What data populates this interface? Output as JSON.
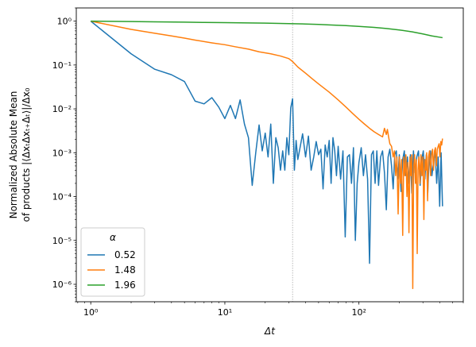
{
  "chart_data": {
    "type": "line",
    "title": "",
    "xlabel": "Δt",
    "ylabel_line1": "Normalized Absolute Mean",
    "ylabel_line2": "of products |⟨ΔxₜΔxₜ₊Δₜ⟩|/Δx₀",
    "xscale": "log",
    "yscale": "log",
    "xlim": [
      0.78,
      600
    ],
    "ylim": [
      4e-07,
      2.0
    ],
    "x_ticks": [
      {
        "value": 1,
        "label": "10⁰"
      },
      {
        "value": 10,
        "label": "10¹"
      },
      {
        "value": 100,
        "label": "10²"
      }
    ],
    "y_ticks": [
      {
        "value": 1e-06,
        "label": "10⁻⁶"
      },
      {
        "value": 1e-05,
        "label": "10⁻⁵"
      },
      {
        "value": 0.0001,
        "label": "10⁻⁴"
      },
      {
        "value": 0.001,
        "label": "10⁻³"
      },
      {
        "value": 0.01,
        "label": "10⁻²"
      },
      {
        "value": 0.1,
        "label": "10⁻¹"
      },
      {
        "value": 1,
        "label": "10⁰"
      }
    ],
    "vline_x": 32,
    "legend": {
      "title": "α",
      "position": "lower-left"
    },
    "series": [
      {
        "name": "0.52",
        "color": "#1f77b4",
        "points": [
          [
            1,
            1.0
          ],
          [
            2,
            0.18
          ],
          [
            3,
            0.08
          ],
          [
            4,
            0.06
          ],
          [
            5,
            0.042
          ],
          [
            6,
            0.015
          ],
          [
            7,
            0.013
          ],
          [
            8,
            0.018
          ],
          [
            9,
            0.011
          ],
          [
            10,
            0.006
          ],
          [
            11,
            0.012
          ],
          [
            12,
            0.006
          ],
          [
            13,
            0.016
          ],
          [
            14,
            0.0045
          ],
          [
            15,
            0.0022
          ],
          [
            16,
            0.00018
          ],
          [
            17,
            0.001
          ],
          [
            18,
            0.0043
          ],
          [
            19,
            0.0011
          ],
          [
            20,
            0.0028
          ],
          [
            21,
            0.0008
          ],
          [
            22,
            0.0045
          ],
          [
            23,
            0.0002
          ],
          [
            24,
            0.0022
          ],
          [
            25,
            0.0013
          ],
          [
            26,
            0.0004
          ],
          [
            27,
            0.0011
          ],
          [
            28,
            0.0004
          ],
          [
            29,
            0.0022
          ],
          [
            30,
            0.0009
          ],
          [
            31,
            0.0105
          ],
          [
            32,
            0.017
          ],
          [
            33,
            0.0004
          ],
          [
            34,
            0.0019
          ],
          [
            35,
            0.0007
          ],
          [
            36,
            0.0011
          ],
          [
            38,
            0.0027
          ],
          [
            40,
            0.0008
          ],
          [
            42,
            0.0024
          ],
          [
            44,
            0.0004
          ],
          [
            46,
            0.0008
          ],
          [
            48,
            0.0018
          ],
          [
            50,
            0.0009
          ],
          [
            52,
            0.0012
          ],
          [
            54,
            0.00015
          ],
          [
            56,
            0.0015
          ],
          [
            58,
            0.0008
          ],
          [
            60,
            0.0019
          ],
          [
            62,
            0.0002
          ],
          [
            64,
            0.0022
          ],
          [
            66,
            0.0011
          ],
          [
            68,
            0.0003
          ],
          [
            70,
            0.0014
          ],
          [
            73,
            0.00025
          ],
          [
            76,
            0.0011
          ],
          [
            79,
            1.2e-05
          ],
          [
            82,
            0.0008
          ],
          [
            85,
            0.0009
          ],
          [
            88,
            0.0002
          ],
          [
            91,
            0.0013
          ],
          [
            94,
            1e-05
          ],
          [
            97,
            0.0002
          ],
          [
            100,
            0.0006
          ],
          [
            104,
            0.0013
          ],
          [
            108,
            0.0003
          ],
          [
            112,
            0.0009
          ],
          [
            116,
            0.00025
          ],
          [
            120,
            3e-06
          ],
          [
            124,
            0.0009
          ],
          [
            128,
            0.0011
          ],
          [
            132,
            0.0002
          ],
          [
            136,
            0.0011
          ],
          [
            140,
            0.00018
          ],
          [
            145,
            0.0008
          ],
          [
            150,
            0.0011
          ],
          [
            155,
            0.00035
          ],
          [
            160,
            5e-05
          ],
          [
            165,
            0.0008
          ],
          [
            170,
            0.0012
          ],
          [
            175,
            0.0005
          ],
          [
            180,
            0.00015
          ],
          [
            185,
            0.0009
          ],
          [
            190,
            0.0011
          ],
          [
            195,
            0.00025
          ],
          [
            200,
            0.0009
          ],
          [
            206,
            0.00013
          ],
          [
            212,
            0.0007
          ],
          [
            218,
            0.0011
          ],
          [
            224,
            0.0003
          ],
          [
            230,
            0.0008
          ],
          [
            236,
            0.0002
          ],
          [
            242,
            0.0009
          ],
          [
            248,
            0.00012
          ],
          [
            255,
            0.0011
          ],
          [
            262,
            0.00035
          ],
          [
            270,
            0.0008
          ],
          [
            278,
            0.0011
          ],
          [
            286,
            0.00018
          ],
          [
            294,
            0.0007
          ],
          [
            302,
            0.0011
          ],
          [
            310,
            0.00025
          ],
          [
            318,
            0.0009
          ],
          [
            326,
            0.00012
          ],
          [
            334,
            0.0008
          ],
          [
            342,
            0.0011
          ],
          [
            350,
            0.0003
          ],
          [
            360,
            0.0006
          ],
          [
            370,
            0.0011
          ],
          [
            380,
            0.0002
          ],
          [
            390,
            0.0008
          ],
          [
            400,
            6e-05
          ],
          [
            410,
            0.001
          ],
          [
            420,
            6e-05
          ]
        ]
      },
      {
        "name": "1.48",
        "color": "#ff7f0e",
        "points": [
          [
            1,
            1.0
          ],
          [
            2,
            0.65
          ],
          [
            3,
            0.53
          ],
          [
            4,
            0.46
          ],
          [
            5,
            0.41
          ],
          [
            6,
            0.37
          ],
          [
            8,
            0.32
          ],
          [
            10,
            0.29
          ],
          [
            12,
            0.26
          ],
          [
            15,
            0.23
          ],
          [
            18,
            0.2
          ],
          [
            22,
            0.18
          ],
          [
            26,
            0.16
          ],
          [
            30,
            0.14
          ],
          [
            32,
            0.12
          ],
          [
            35,
            0.09
          ],
          [
            40,
            0.065
          ],
          [
            45,
            0.048
          ],
          [
            50,
            0.037
          ],
          [
            60,
            0.024
          ],
          [
            70,
            0.016
          ],
          [
            80,
            0.011
          ],
          [
            90,
            0.0078
          ],
          [
            100,
            0.0058
          ],
          [
            110,
            0.0045
          ],
          [
            120,
            0.0036
          ],
          [
            130,
            0.003
          ],
          [
            140,
            0.0026
          ],
          [
            150,
            0.0023
          ],
          [
            155,
            0.0036
          ],
          [
            160,
            0.0026
          ],
          [
            163,
            0.0034
          ],
          [
            166,
            0.0024
          ],
          [
            170,
            0.0016
          ],
          [
            175,
            0.0014
          ],
          [
            180,
            0.0008
          ],
          [
            184,
            0.0011
          ],
          [
            188,
            0.0003
          ],
          [
            192,
            0.0008
          ],
          [
            196,
            4e-05
          ],
          [
            200,
            0.0008
          ],
          [
            204,
            0.0002
          ],
          [
            208,
            0.0007
          ],
          [
            212,
            1.3e-05
          ],
          [
            216,
            0.0008
          ],
          [
            220,
            0.0003
          ],
          [
            224,
            0.0009
          ],
          [
            228,
            0.0001
          ],
          [
            232,
            0.0006
          ],
          [
            236,
            1.5e-05
          ],
          [
            240,
            0.0008
          ],
          [
            244,
            0.0003
          ],
          [
            248,
            0.0009
          ],
          [
            252,
            8e-07
          ],
          [
            256,
            0.0005
          ],
          [
            260,
            0.0009
          ],
          [
            264,
            0.0002
          ],
          [
            268,
            0.0007
          ],
          [
            272,
            5e-06
          ],
          [
            276,
            0.0004
          ],
          [
            280,
            0.0008
          ],
          [
            285,
            0.0002
          ],
          [
            290,
            0.0009
          ],
          [
            295,
            0.0003
          ],
          [
            300,
            0.0008
          ],
          [
            305,
            3e-05
          ],
          [
            310,
            0.0007
          ],
          [
            315,
            0.0004
          ],
          [
            320,
            0.001
          ],
          [
            325,
            8e-05
          ],
          [
            330,
            0.0008
          ],
          [
            336,
            0.0011
          ],
          [
            342,
            0.0003
          ],
          [
            348,
            0.0009
          ],
          [
            354,
            0.0012
          ],
          [
            360,
            0.0004
          ],
          [
            366,
            0.0011
          ],
          [
            372,
            0.0013
          ],
          [
            378,
            0.0005
          ],
          [
            384,
            0.0012
          ],
          [
            390,
            0.0014
          ],
          [
            396,
            0.0016
          ],
          [
            402,
            0.0008
          ],
          [
            408,
            0.0018
          ],
          [
            414,
            0.0015
          ],
          [
            420,
            0.0021
          ]
        ]
      },
      {
        "name": "1.96",
        "color": "#2ca02c",
        "points": [
          [
            1,
            1.0
          ],
          [
            2,
            0.98
          ],
          [
            3,
            0.965
          ],
          [
            5,
            0.95
          ],
          [
            7,
            0.935
          ],
          [
            10,
            0.925
          ],
          [
            15,
            0.91
          ],
          [
            20,
            0.9
          ],
          [
            30,
            0.88
          ],
          [
            40,
            0.86
          ],
          [
            50,
            0.84
          ],
          [
            60,
            0.82
          ],
          [
            80,
            0.79
          ],
          [
            100,
            0.76
          ],
          [
            130,
            0.72
          ],
          [
            160,
            0.68
          ],
          [
            200,
            0.63
          ],
          [
            250,
            0.57
          ],
          [
            300,
            0.51
          ],
          [
            350,
            0.46
          ],
          [
            420,
            0.42
          ]
        ]
      }
    ]
  }
}
